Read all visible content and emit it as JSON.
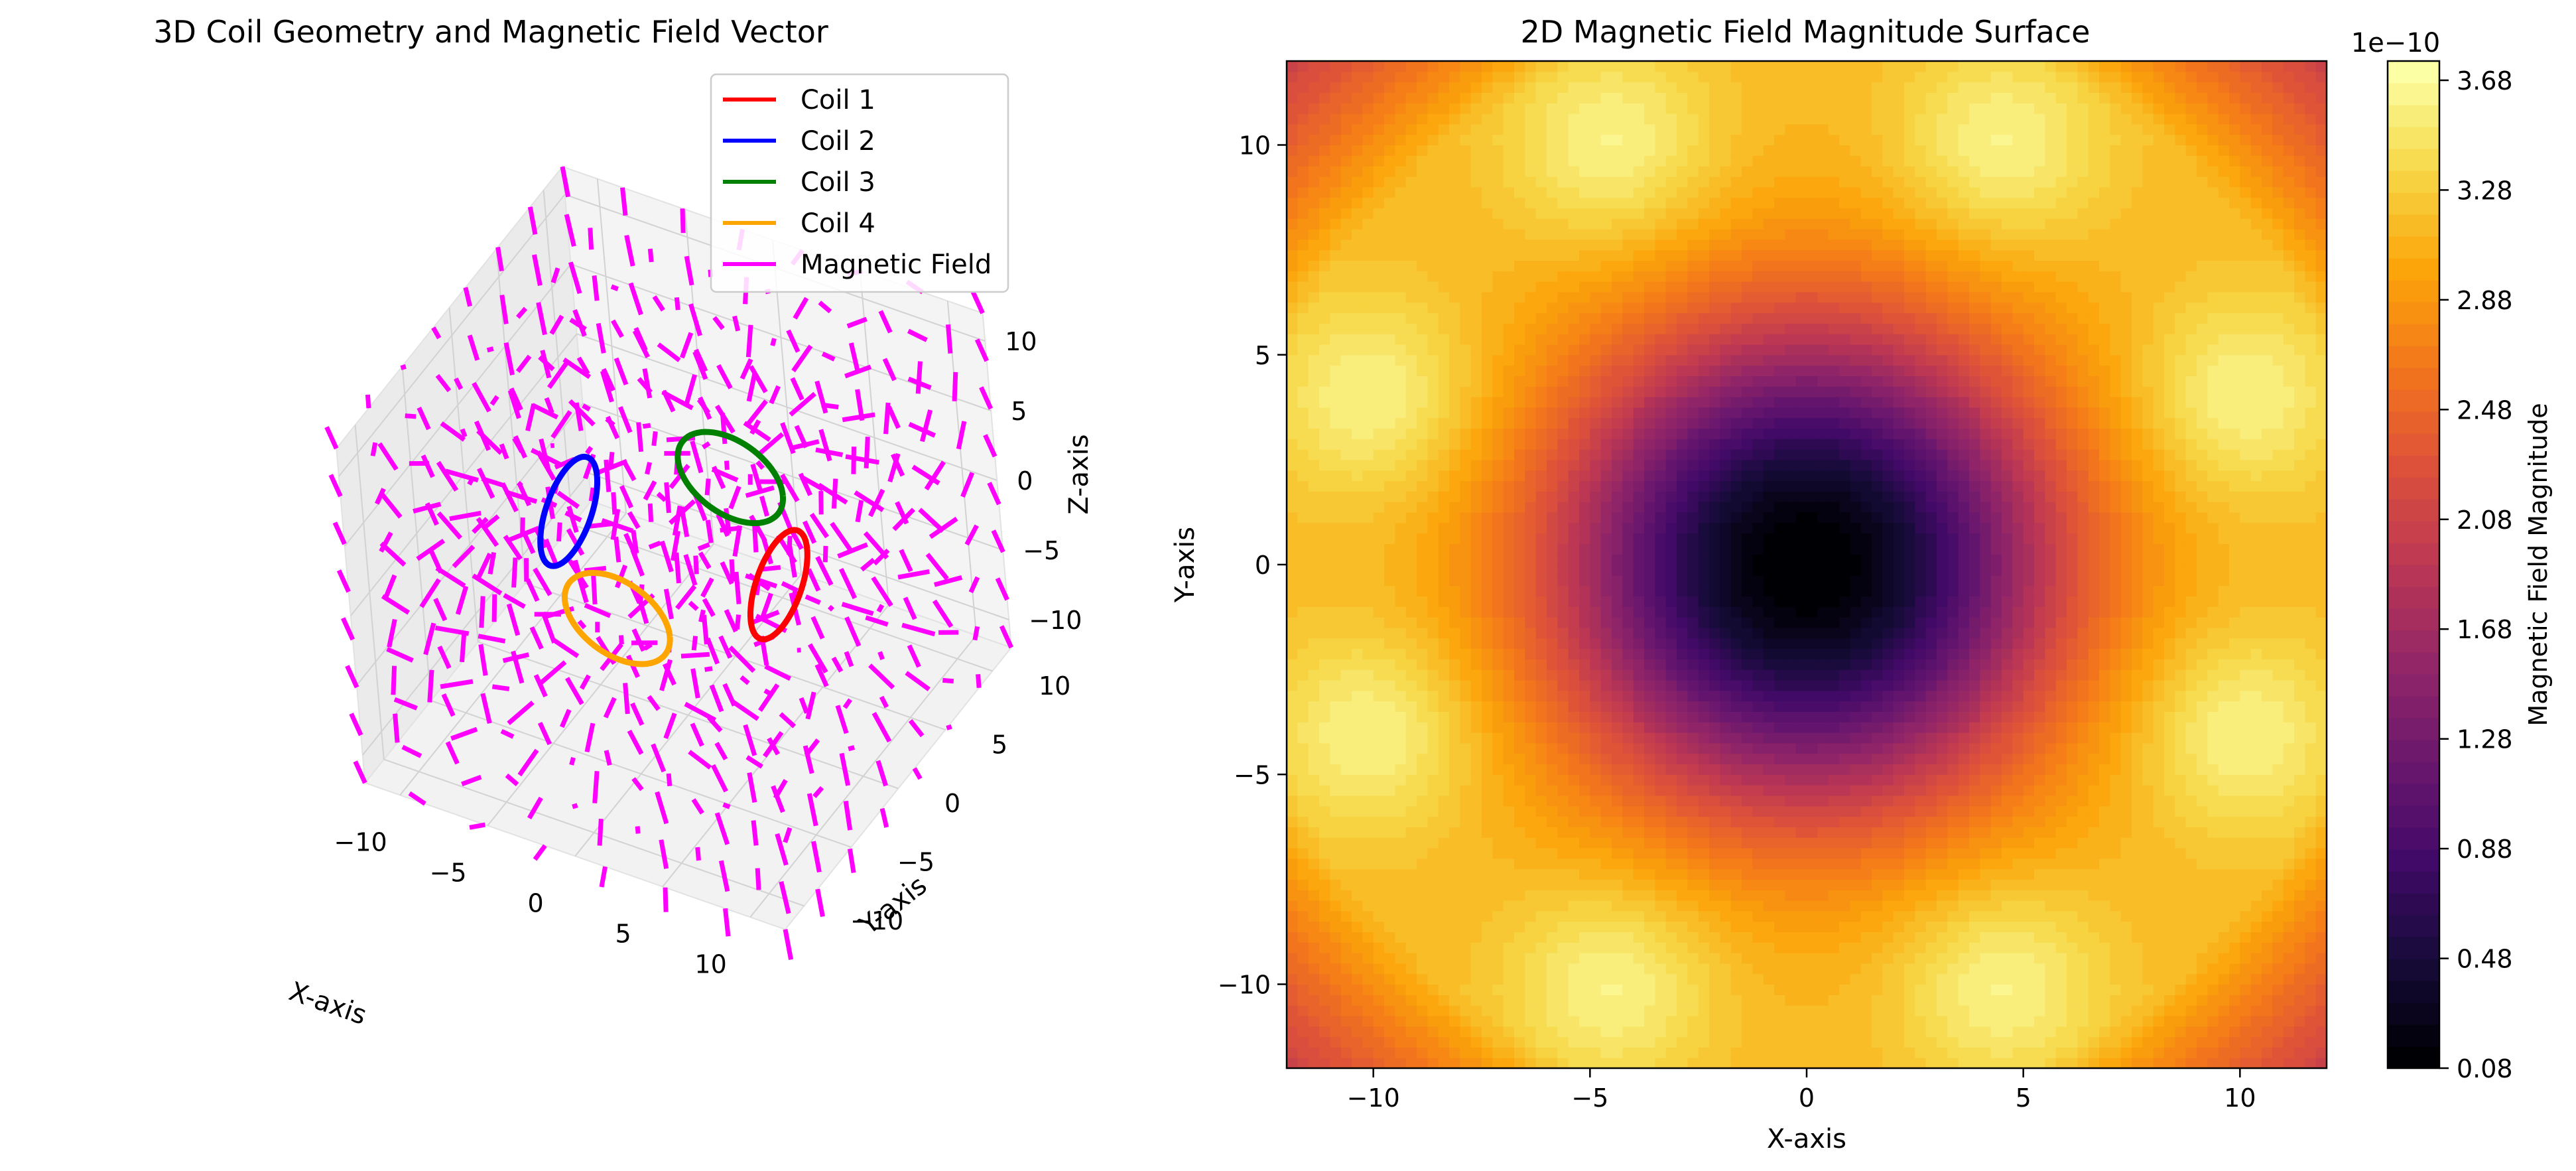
{
  "chart_data": [
    {
      "type": "3d-quiver",
      "title": "3D Coil Geometry and Magnetic Field Vector",
      "xlabel": "X-axis",
      "ylabel": "Y-axis",
      "zlabel": "Z-axis",
      "xlim": [
        -12,
        12
      ],
      "ylim": [
        -12,
        12
      ],
      "zlim": [
        -12,
        12
      ],
      "xticks": [
        "−10",
        "−5",
        "0",
        "5",
        "10"
      ],
      "yticks": [
        "−10",
        "−5",
        "0",
        "5",
        "10"
      ],
      "zticks": [
        "−10",
        "−5",
        "0",
        "5",
        "10"
      ],
      "grid": true,
      "legend_position": "top-right",
      "series": [
        {
          "name": "Coil 1",
          "color": "#ff0000",
          "center": [
            6,
            0,
            0
          ],
          "normal_axis": "x",
          "radius": 3
        },
        {
          "name": "Coil 2",
          "color": "#0000ff",
          "center": [
            -6,
            0,
            0
          ],
          "normal_axis": "x",
          "radius": 3
        },
        {
          "name": "Coil 3",
          "color": "#008000",
          "center": [
            0,
            6,
            0
          ],
          "normal_axis": "y",
          "radius": 3
        },
        {
          "name": "Coil 4",
          "color": "#ffa500",
          "center": [
            0,
            -6,
            0
          ],
          "normal_axis": "y",
          "radius": 3
        },
        {
          "name": "Magnetic Field",
          "color": "#ff00ff",
          "grid_range": [
            -12,
            12
          ],
          "grid_points": 8
        }
      ]
    },
    {
      "type": "heatmap",
      "title": "2D Magnetic Field Magnitude Surface",
      "xlabel": "X-axis",
      "ylabel": "Y-axis",
      "xlim": [
        -12,
        12
      ],
      "ylim": [
        -12,
        12
      ],
      "xticks": [
        "−10",
        "−5",
        "0",
        "5",
        "10"
      ],
      "yticks": [
        "−10",
        "−5",
        "0",
        "5",
        "10"
      ],
      "colormap": "inferno",
      "colorbar": {
        "label": "Magnetic Field Magnitude",
        "offset_text": "1e−10",
        "ticks": [
          "0.08",
          "0.48",
          "0.88",
          "1.28",
          "1.68",
          "2.08",
          "2.48",
          "2.88",
          "3.28",
          "3.68"
        ],
        "min": 0.08,
        "max": 3.75
      },
      "features": {
        "low_center": [
          0,
          0
        ],
        "min_value": 0.08,
        "max_value": 3.75,
        "peaks": [
          [
            -4.5,
            10
          ],
          [
            4.5,
            10
          ],
          [
            -10,
            4
          ],
          [
            10,
            4
          ],
          [
            -10,
            -4
          ],
          [
            10,
            -4
          ],
          [
            -4.5,
            -10
          ],
          [
            4.5,
            -10
          ]
        ]
      }
    }
  ]
}
